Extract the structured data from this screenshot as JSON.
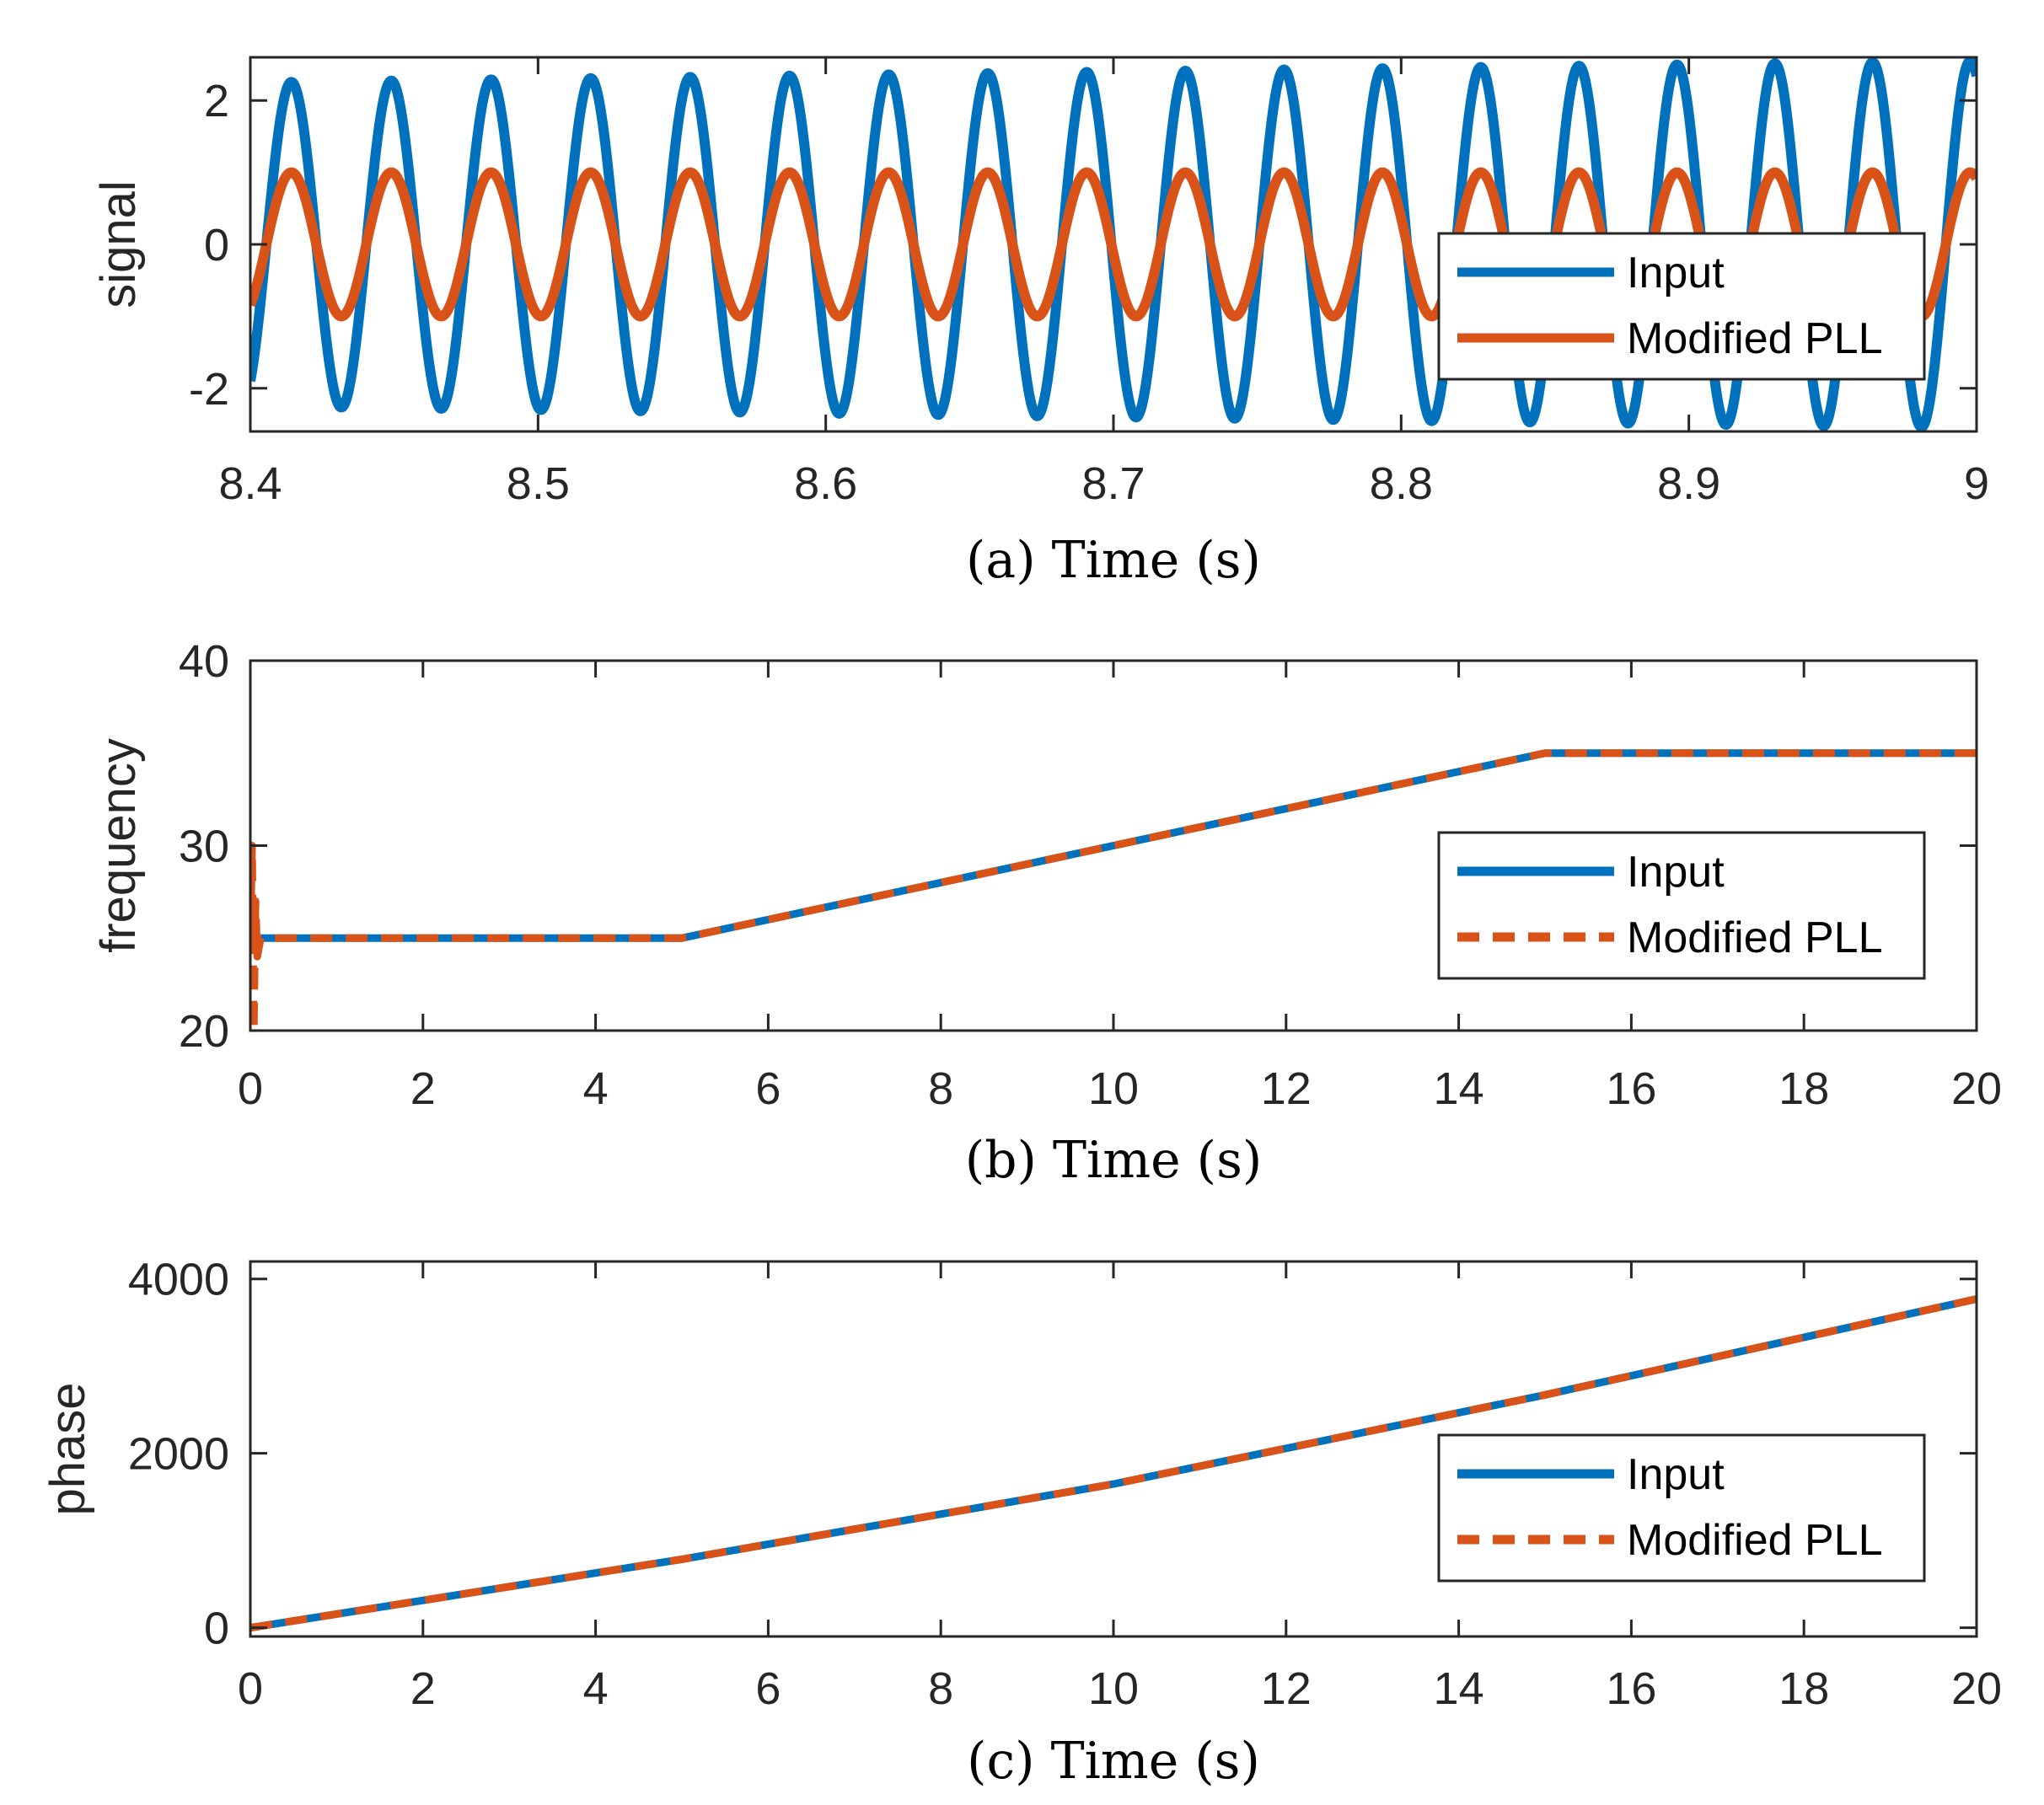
{
  "chart_data": [
    {
      "type": "line",
      "id": "a",
      "xlabel": "(a) Time (s)",
      "ylabel": "signal",
      "xlim": [
        8.4,
        9
      ],
      "ylim": [
        -2.6,
        2.6
      ],
      "xticks": [
        "8.4",
        "8.5",
        "8.6",
        "8.7",
        "8.8",
        "8.9",
        "9"
      ],
      "yticks": [
        "-2",
        "0",
        "2"
      ],
      "legend": [
        "Input",
        "Modified PLL"
      ],
      "legend_position": "right",
      "series": [
        {
          "name": "Input",
          "color": "#0072BD",
          "style": "solid",
          "x": [
            8.4,
            9.0
          ],
          "amplitude_start": 2.25,
          "amplitude_end": 2.55,
          "frequency_start": 28.75,
          "frequency_end": 29.5,
          "note": "sinusoid sampled from model"
        },
        {
          "name": "Modified PLL",
          "color": "#D95319",
          "style": "solid",
          "x": [
            8.4,
            9.0
          ],
          "amplitude_start": 1.0,
          "amplitude_end": 1.0,
          "frequency_start": 28.75,
          "frequency_end": 29.5
        }
      ]
    },
    {
      "type": "line",
      "id": "b",
      "xlabel": "(b) Time (s)",
      "ylabel": "frequency",
      "xlim": [
        0,
        20
      ],
      "ylim": [
        20,
        40
      ],
      "xticks": [
        "0",
        "2",
        "4",
        "6",
        "8",
        "10",
        "12",
        "14",
        "16",
        "18",
        "20"
      ],
      "yticks": [
        "20",
        "30",
        "40"
      ],
      "legend": [
        "Input",
        "Modified PLL"
      ],
      "legend_position": "right",
      "series": [
        {
          "name": "Input",
          "color": "#0072BD",
          "style": "solid",
          "x": [
            0,
            5,
            15,
            20
          ],
          "y": [
            25,
            25,
            35,
            35
          ]
        },
        {
          "name": "Modified PLL",
          "color": "#D95319",
          "style": "dashed",
          "x": [
            0,
            0.02,
            0.04,
            0.06,
            0.08,
            0.12,
            5,
            15,
            20
          ],
          "y": [
            25,
            30,
            20,
            27,
            24,
            25,
            25,
            35,
            35
          ]
        }
      ]
    },
    {
      "type": "line",
      "id": "c",
      "xlabel": "(c) Time (s)",
      "ylabel": "phase",
      "xlim": [
        0,
        20
      ],
      "ylim": [
        -100,
        4200
      ],
      "xticks": [
        "0",
        "2",
        "4",
        "6",
        "8",
        "10",
        "12",
        "14",
        "16",
        "18",
        "20"
      ],
      "yticks": [
        "0",
        "2000",
        "4000"
      ],
      "legend": [
        "Input",
        "Modified PLL"
      ],
      "legend_position": "right",
      "series": [
        {
          "name": "Input",
          "color": "#0072BD",
          "style": "solid",
          "x": [
            0,
            5,
            10,
            15,
            20
          ],
          "y": [
            0,
            785,
            1648,
            2670,
            3770
          ]
        },
        {
          "name": "Modified PLL",
          "color": "#D95319",
          "style": "dashed",
          "x": [
            0,
            5,
            10,
            15,
            20
          ],
          "y": [
            0,
            785,
            1648,
            2670,
            3770
          ]
        }
      ]
    }
  ]
}
